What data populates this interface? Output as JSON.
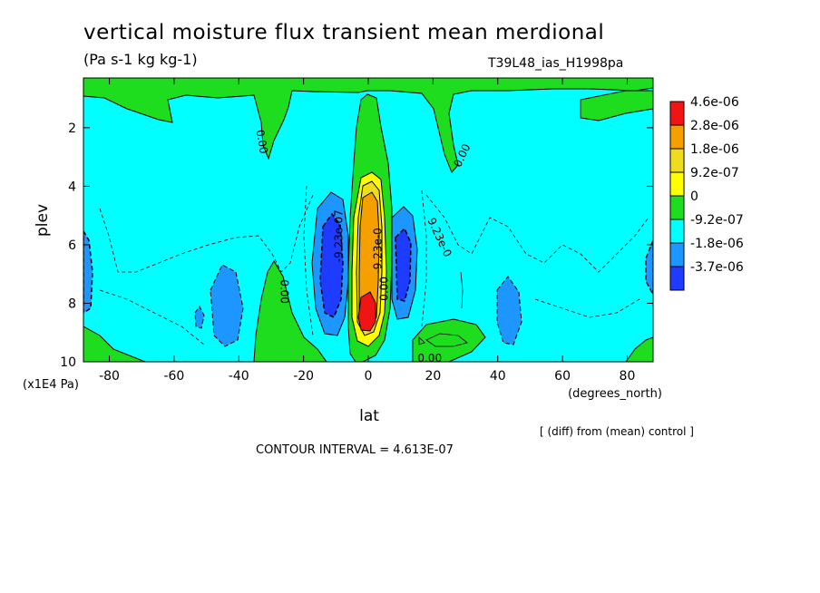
{
  "header": {
    "title": "vertical moisture flux transient mean merdional",
    "units": "(Pa s-1 kg kg-1)",
    "run_id": "T39L48_ias_H1998pa"
  },
  "footer": {
    "diff_note": "[ (diff) from (mean) control ]",
    "contour_interval": "CONTOUR INTERVAL = 4.613E-07"
  },
  "chart_data": {
    "type": "heatmap",
    "xlabel": "lat",
    "xunits": "(degrees_north)",
    "ylabel": "plev",
    "yunits": "(x1E4 Pa)",
    "xlim": [
      -88,
      88
    ],
    "ylim": [
      10,
      0.3
    ],
    "x_ticks": [
      -80,
      -60,
      -40,
      -20,
      0,
      20,
      40,
      60,
      80
    ],
    "x_tick_labels": [
      "-80",
      "-60",
      "-40",
      "-20",
      "0",
      "20",
      "40",
      "60",
      "80"
    ],
    "y_ticks": [
      2,
      4,
      6,
      8,
      10
    ],
    "y_tick_labels": [
      "2",
      "4",
      "6",
      "8",
      "10"
    ],
    "legend": {
      "placement": "right",
      "labels": [
        "4.6e-06",
        "2.8e-06",
        "1.8e-06",
        "9.2e-07",
        "0",
        "-9.2e-07",
        "-1.8e-06",
        "-3.7e-06"
      ],
      "colors": [
        "#f01414",
        "#f5a000",
        "#f0dc1e",
        "#ffff00",
        "#1edc1e",
        "#00ffff",
        "#1e96ff",
        "#1e3cff"
      ]
    },
    "contour_labels": [
      {
        "text": "0.00",
        "lat": -34,
        "plev": 2.5,
        "angle": 80
      },
      {
        "text": "0.00",
        "lat": 30,
        "plev": 3.0,
        "angle": -65
      },
      {
        "text": "0.00",
        "lat": -27,
        "plev": 7.6,
        "angle": 90
      },
      {
        "text": "-9.23e-07",
        "lat": -8,
        "plev": 5.7,
        "angle": -90
      },
      {
        "text": "9.23e-0",
        "lat": 21,
        "plev": 5.8,
        "angle": 65
      },
      {
        "text": "0.00",
        "lat": 19,
        "plev": 10.0,
        "angle": 0
      },
      {
        "text": "-9.23e-0",
        "lat": 4,
        "plev": 6.2,
        "angle": -90
      },
      {
        "text": "0.00",
        "lat": 6,
        "plev": 7.5,
        "angle": -90
      }
    ]
  }
}
